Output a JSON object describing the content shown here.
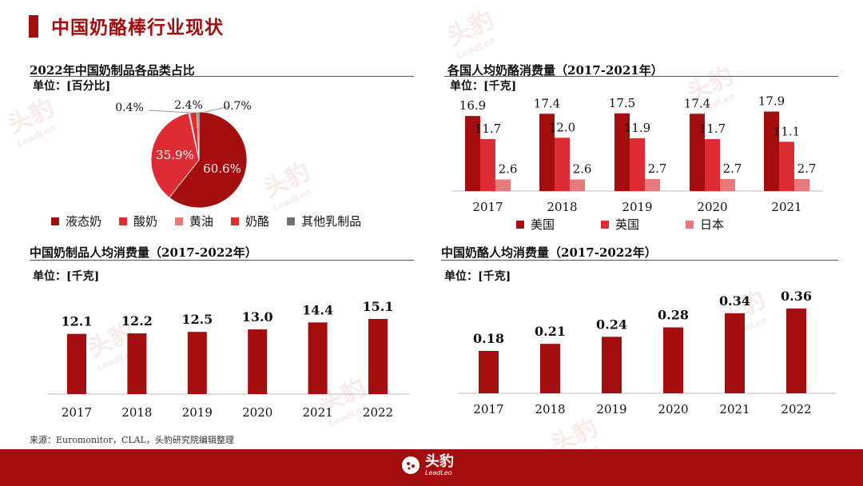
{
  "page": {
    "title": "中国奶酪棒行业现状"
  },
  "source": "来源：Euromonitor，CLAL，头豹研究院编辑整理",
  "brand": {
    "name": "头豹",
    "sub": "LeadLeo"
  },
  "colors": {
    "dark": "#a50e0e",
    "mid": "#dd2c33",
    "light": "#e8787a",
    "red2": "#e22d2d",
    "gray": "#707070",
    "footer": "#a50e0e"
  },
  "panels": {
    "p1": {
      "title": "2022年中国奶制品各品类占比",
      "unit": "单位：[百分比]"
    },
    "p2": {
      "title": "各国人均奶酪消费量（2017-2021年）",
      "unit": "单位：[千克]"
    },
    "p3": {
      "title": "中国奶制品人均消费量（2017-2022年）",
      "unit": "单位：[千克]"
    },
    "p4": {
      "title": "中国奶酪人均消费量（2017-2022年）",
      "unit": "单位：[千克]"
    }
  },
  "chart_data": [
    {
      "type": "pie",
      "title": "2022年中国奶制品各品类占比",
      "categories": [
        "液态奶",
        "酸奶",
        "黄油",
        "奶酪",
        "其他乳制品"
      ],
      "values": [
        60.6,
        35.9,
        0.4,
        2.4,
        0.7
      ],
      "labels": [
        "60.6%",
        "35.9%",
        "0.4%",
        "2.4%",
        "0.7%"
      ],
      "colors": [
        "#a50e0e",
        "#dd2c33",
        "#e8787a",
        "#e22d2d",
        "#707070"
      ]
    },
    {
      "type": "bar",
      "title": "各国人均奶酪消费量（2017-2021年）",
      "categories": [
        "2017",
        "2018",
        "2019",
        "2020",
        "2021"
      ],
      "series": [
        {
          "name": "美国",
          "values": [
            16.9,
            17.4,
            17.5,
            17.4,
            17.9
          ],
          "color": "#a50e0e"
        },
        {
          "name": "英国",
          "values": [
            11.7,
            12.0,
            11.9,
            11.7,
            11.1
          ],
          "color": "#dd2c33"
        },
        {
          "name": "日本",
          "values": [
            2.6,
            2.6,
            2.7,
            2.7,
            2.7
          ],
          "color": "#e8787a"
        }
      ],
      "ylim": [
        0,
        18
      ]
    },
    {
      "type": "bar",
      "title": "中国奶制品人均消费量（2017-2022年）",
      "categories": [
        "2017",
        "2018",
        "2019",
        "2020",
        "2021",
        "2022"
      ],
      "values": [
        12.1,
        12.2,
        12.5,
        13.0,
        14.4,
        15.1
      ],
      "labels": [
        "12.1",
        "12.2",
        "12.5",
        "13.0",
        "14.4",
        "15.1"
      ],
      "color": "#a50e0e",
      "ylim": [
        0,
        15.1
      ]
    },
    {
      "type": "bar",
      "title": "中国奶酪人均消费量（2017-2022年）",
      "categories": [
        "2017",
        "2018",
        "2019",
        "2020",
        "2021",
        "2022"
      ],
      "values": [
        0.18,
        0.21,
        0.24,
        0.28,
        0.34,
        0.36
      ],
      "labels": [
        "0.18",
        "0.21",
        "0.24",
        "0.28",
        "0.34",
        "0.36"
      ],
      "color": "#a50e0e",
      "ylim": [
        0,
        0.36
      ]
    }
  ]
}
